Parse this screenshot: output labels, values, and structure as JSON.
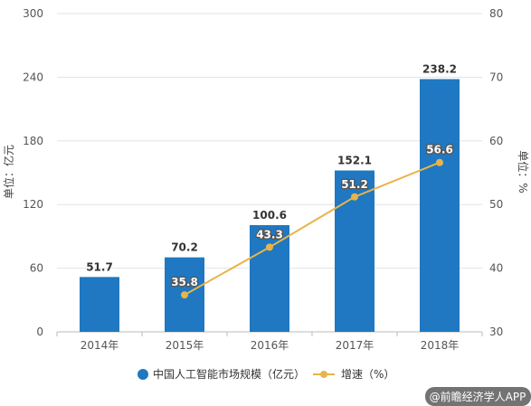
{
  "chart_data": {
    "type": "bar",
    "categories": [
      "2014年",
      "2015年",
      "2016年",
      "2017年",
      "2018年"
    ],
    "series": [
      {
        "name": "中国人工智能市场规模（亿元）",
        "type": "bar",
        "axis": "left",
        "values": [
          51.7,
          70.2,
          100.6,
          152.1,
          238.2
        ],
        "labels": [
          "51.7",
          "70.2",
          "100.6",
          "152.1",
          "238.2"
        ],
        "color": "#1f78c1"
      },
      {
        "name": "增速（%）",
        "type": "line",
        "axis": "right",
        "values": [
          null,
          35.8,
          43.3,
          51.2,
          56.6
        ],
        "labels": [
          "",
          "35.8",
          "43.3",
          "51.2",
          "56.6"
        ],
        "color": "#e8b44a"
      }
    ],
    "ylabel": "单位：亿元",
    "y2label": "单位：%",
    "ylim": [
      0,
      300
    ],
    "y2lim": [
      30,
      80
    ],
    "yticks": [
      "0",
      "60",
      "120",
      "180",
      "240",
      "300"
    ],
    "y2ticks": [
      "30",
      "40",
      "50",
      "60",
      "70",
      "80"
    ],
    "grid": true,
    "legend": "bottom"
  },
  "watermark": "@前瞻经济学人APP"
}
